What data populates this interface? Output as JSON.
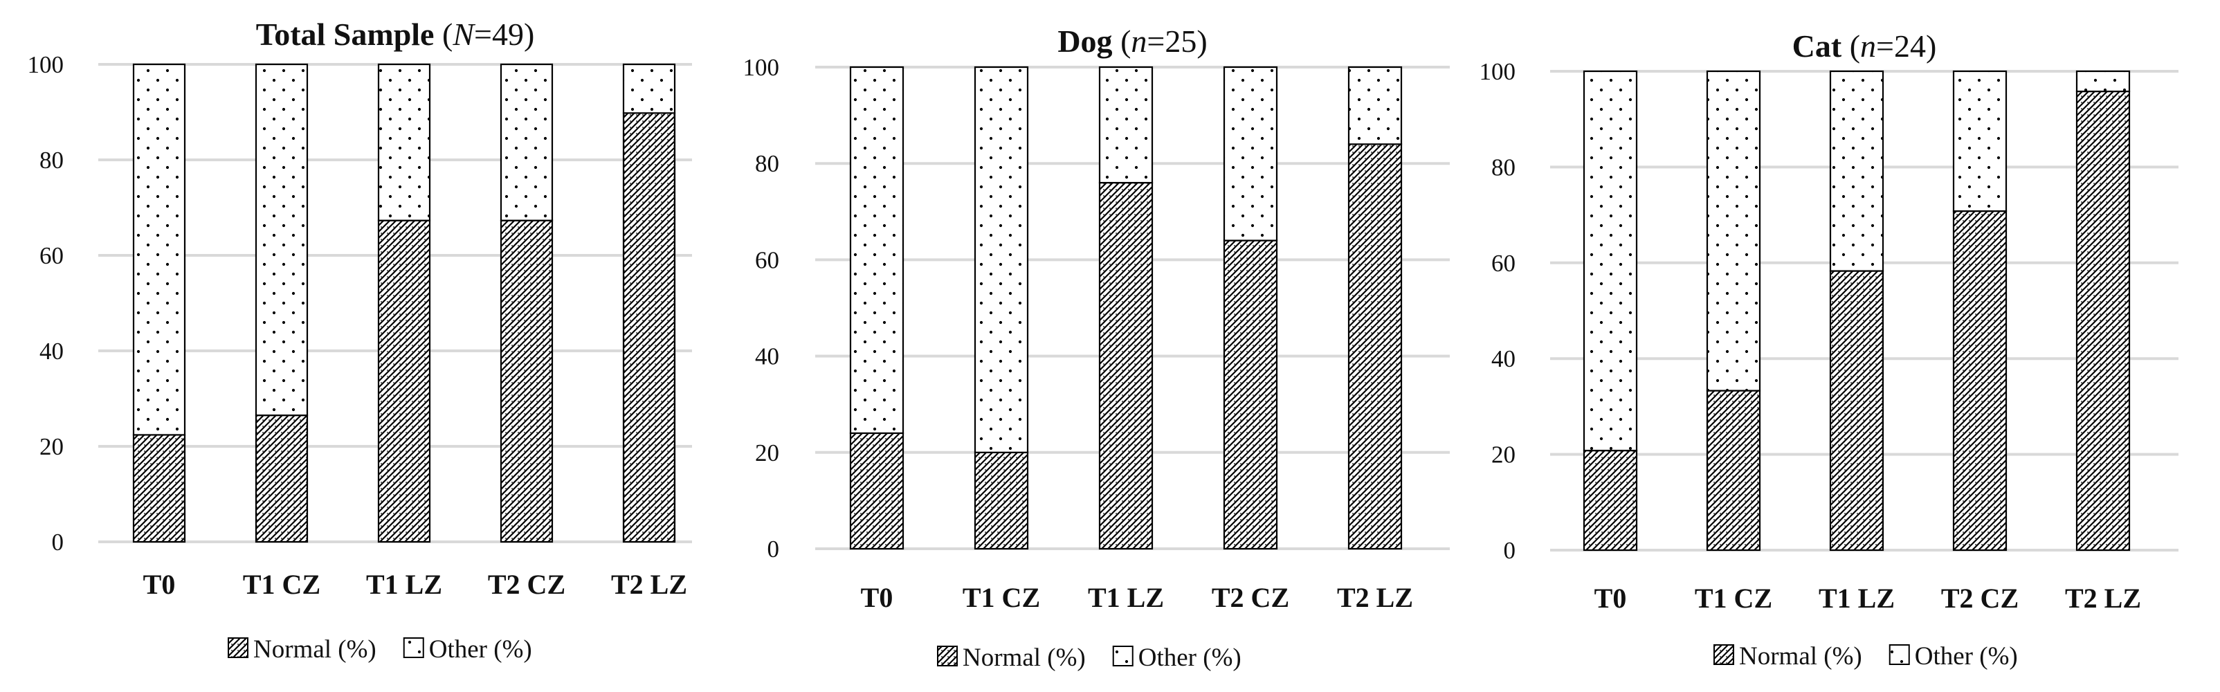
{
  "colors": {
    "gridline": "#d9d9d9",
    "bar_outline": "#000000",
    "normal_hatch": "#000000",
    "other_dots": "#000000",
    "text": "#111111"
  },
  "chart_data": [
    {
      "type": "bar",
      "stacked": true,
      "title": "Total Sample",
      "title_stat": "(N=49)",
      "title_stat_parts": {
        "open": "(",
        "var": "N",
        "rest": "=49)"
      },
      "categories": [
        "T0",
        "T1 CZ",
        "T1 LZ",
        "T2 CZ",
        "T2 LZ"
      ],
      "ylim": [
        0,
        100
      ],
      "yticks": [
        0,
        20,
        40,
        60,
        80,
        100
      ],
      "grid": true,
      "legend_position": "bottom",
      "series": [
        {
          "name": "Normal (%)",
          "pattern": "hatch",
          "values": [
            22.4,
            26.5,
            67.3,
            67.3,
            89.8
          ]
        },
        {
          "name": "Other (%)",
          "pattern": "dots",
          "values": [
            77.6,
            73.5,
            32.7,
            32.7,
            10.2
          ]
        }
      ]
    },
    {
      "type": "bar",
      "stacked": true,
      "title": "Dog",
      "title_stat": "(n=25)",
      "title_stat_parts": {
        "open": "(",
        "var": "n",
        "rest": "=25)"
      },
      "categories": [
        "T0",
        "T1 CZ",
        "T1 LZ",
        "T2 CZ",
        "T2 LZ"
      ],
      "ylim": [
        0,
        100
      ],
      "yticks": [
        0,
        20,
        40,
        60,
        80,
        100
      ],
      "grid": true,
      "legend_position": "bottom",
      "series": [
        {
          "name": "Normal (%)",
          "pattern": "hatch",
          "values": [
            24,
            20,
            76,
            64,
            84
          ]
        },
        {
          "name": "Other (%)",
          "pattern": "dots",
          "values": [
            76,
            80,
            24,
            36,
            16
          ]
        }
      ]
    },
    {
      "type": "bar",
      "stacked": true,
      "title": "Cat",
      "title_stat": "(n=24)",
      "title_stat_parts": {
        "open": "(",
        "var": "n",
        "rest": "=24)"
      },
      "categories": [
        "T0",
        "T1 CZ",
        "T1 LZ",
        "T2 CZ",
        "T2 LZ"
      ],
      "ylim": [
        0,
        100
      ],
      "yticks": [
        0,
        20,
        40,
        60,
        80,
        100
      ],
      "grid": true,
      "legend_position": "bottom",
      "series": [
        {
          "name": "Normal (%)",
          "pattern": "hatch",
          "values": [
            20.8,
            33.3,
            58.3,
            70.8,
            95.8
          ]
        },
        {
          "name": "Other (%)",
          "pattern": "dots",
          "values": [
            79.2,
            66.7,
            41.7,
            29.2,
            4.2
          ]
        }
      ]
    }
  ]
}
